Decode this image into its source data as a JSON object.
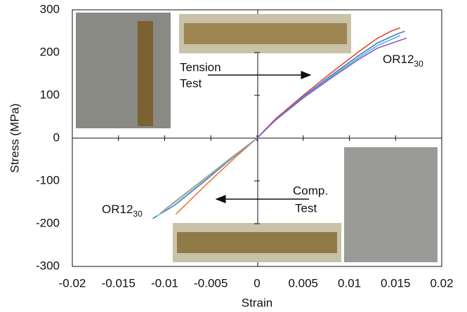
{
  "chart_data": {
    "type": "line",
    "x_label": "Strain",
    "y_label": "Stress (MPa)",
    "xlim": [
      -0.02,
      0.02
    ],
    "xticks": [
      -0.02,
      -0.015,
      -0.01,
      -0.005,
      0,
      0.005,
      0.01,
      0.015,
      0.02
    ],
    "ylim": [
      -300,
      300
    ],
    "yticks": [
      -300,
      -200,
      -100,
      0,
      100,
      200,
      300
    ],
    "series": [
      {
        "color": "#e8452c",
        "x": [
          0,
          0.002,
          0.005,
          0.008,
          0.011,
          0.013,
          0.0145,
          0.0155
        ],
        "values": [
          0,
          45,
          100,
          152,
          202,
          233,
          250,
          258
        ]
      },
      {
        "color": "#3a7fd0",
        "x": [
          0,
          0.002,
          0.005,
          0.008,
          0.011,
          0.013,
          0.015,
          0.016
        ],
        "values": [
          0,
          43,
          97,
          146,
          193,
          222,
          242,
          250
        ]
      },
      {
        "color": "#4fb8c8",
        "x": [
          0,
          0.002,
          0.005,
          0.008,
          0.011,
          0.013,
          0.0155
        ],
        "values": [
          0,
          42,
          95,
          143,
          188,
          216,
          240
        ]
      },
      {
        "color": "#8a5cc4",
        "x": [
          0,
          0.002,
          0.005,
          0.008,
          0.011,
          0.013,
          0.015,
          0.0162
        ],
        "values": [
          0,
          42,
          94,
          140,
          184,
          210,
          225,
          234
        ]
      },
      {
        "color": "#f07a2a",
        "x": [
          0,
          -0.002,
          -0.005,
          -0.007,
          -0.0088
        ],
        "values": [
          0,
          -38,
          -98,
          -140,
          -178
        ]
      },
      {
        "color": "#3a7fd0",
        "x": [
          0,
          -0.003,
          -0.006,
          -0.009,
          -0.0113
        ],
        "values": [
          0,
          -52,
          -106,
          -158,
          -188
        ]
      },
      {
        "color": "#9bc49a",
        "x": [
          0,
          -0.003,
          -0.006,
          -0.009,
          -0.0108
        ],
        "values": [
          0,
          -50,
          -102,
          -152,
          -182
        ]
      },
      {
        "color": "#a0a0a0",
        "x": [
          0,
          -0.003,
          -0.006,
          -0.009,
          -0.0105
        ],
        "values": [
          0,
          -49,
          -100,
          -150,
          -176
        ]
      }
    ],
    "annotations": {
      "tension": [
        "Tension",
        "Test"
      ],
      "comp": [
        "Comp.",
        "Test"
      ],
      "tension_label": {
        "text": "OR12",
        "sub": "30"
      },
      "comp_label": {
        "text": "OR12",
        "sub": "30"
      }
    }
  }
}
